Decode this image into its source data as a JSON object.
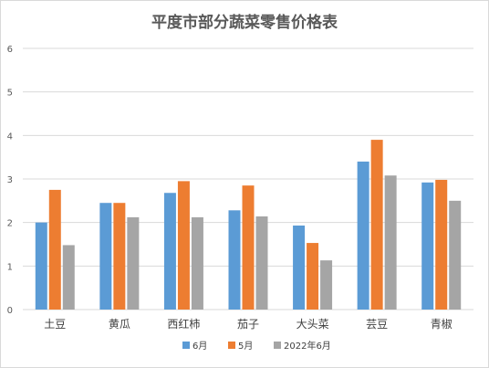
{
  "chart_data": {
    "type": "bar",
    "title": "平度市部分蔬菜零售价格表",
    "xlabel": "",
    "ylabel": "",
    "ylim": [
      0,
      6
    ],
    "yticks": [
      "0",
      "1",
      "2",
      "3",
      "4",
      "5",
      "6"
    ],
    "grid": true,
    "legend_position": "bottom",
    "categories": [
      "土豆",
      "黄瓜",
      "西红柿",
      "茄子",
      "大头菜",
      "芸豆",
      "青椒"
    ],
    "series": [
      {
        "name": "6月",
        "color": "#5b9bd5",
        "values": [
          2.0,
          2.45,
          2.68,
          2.28,
          1.93,
          3.4,
          2.92
        ]
      },
      {
        "name": "5月",
        "color": "#ed7d31",
        "values": [
          2.75,
          2.45,
          2.95,
          2.85,
          1.53,
          3.9,
          2.98
        ]
      },
      {
        "name": "2022年6月",
        "color": "#a5a5a5",
        "values": [
          1.48,
          2.12,
          2.12,
          2.14,
          1.13,
          3.08,
          2.5
        ]
      }
    ]
  }
}
